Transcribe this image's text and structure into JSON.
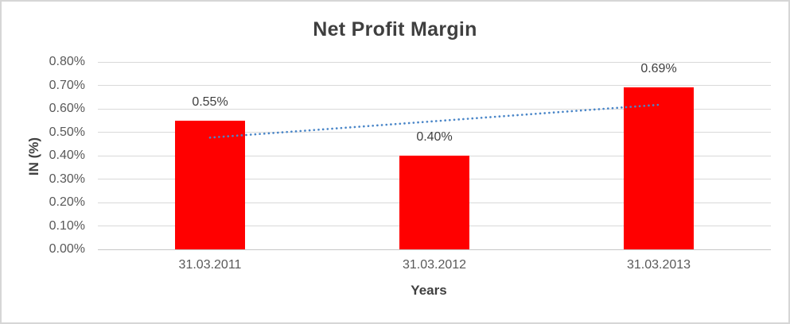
{
  "chart_data": {
    "type": "bar",
    "title": "Net Profit Margin",
    "xlabel": "Years",
    "ylabel": "IN (%)",
    "categories": [
      "31.03.2011",
      "31.03.2012",
      "31.03.2013"
    ],
    "values": [
      0.55,
      0.4,
      0.69
    ],
    "value_labels": [
      "0.55%",
      "0.40%",
      "0.69%"
    ],
    "ylim": [
      0,
      0.8
    ],
    "yticks": [
      {
        "value": 0.0,
        "label": "0.00%"
      },
      {
        "value": 0.1,
        "label": "0.10%"
      },
      {
        "value": 0.2,
        "label": "0.20%"
      },
      {
        "value": 0.3,
        "label": "0.30%"
      },
      {
        "value": 0.4,
        "label": "0.40%"
      },
      {
        "value": 0.5,
        "label": "0.50%"
      },
      {
        "value": 0.6,
        "label": "0.60%"
      },
      {
        "value": 0.7,
        "label": "0.70%"
      },
      {
        "value": 0.8,
        "label": "0.80%"
      }
    ],
    "grid": true,
    "legend": "none",
    "bar_color": "#ff0000",
    "trendline": {
      "type": "linear",
      "style": "dotted",
      "color": "#4a86c8",
      "start_value": 0.477,
      "end_value": 0.617
    },
    "colors": {
      "gridline": "#d9d9d9",
      "axis_line": "#c6c6c6",
      "tick_text": "#595959",
      "title_text": "#3f3f3f",
      "label_text": "#404040",
      "frame_border": "#d6d6d6",
      "background": "#ffffff"
    }
  }
}
